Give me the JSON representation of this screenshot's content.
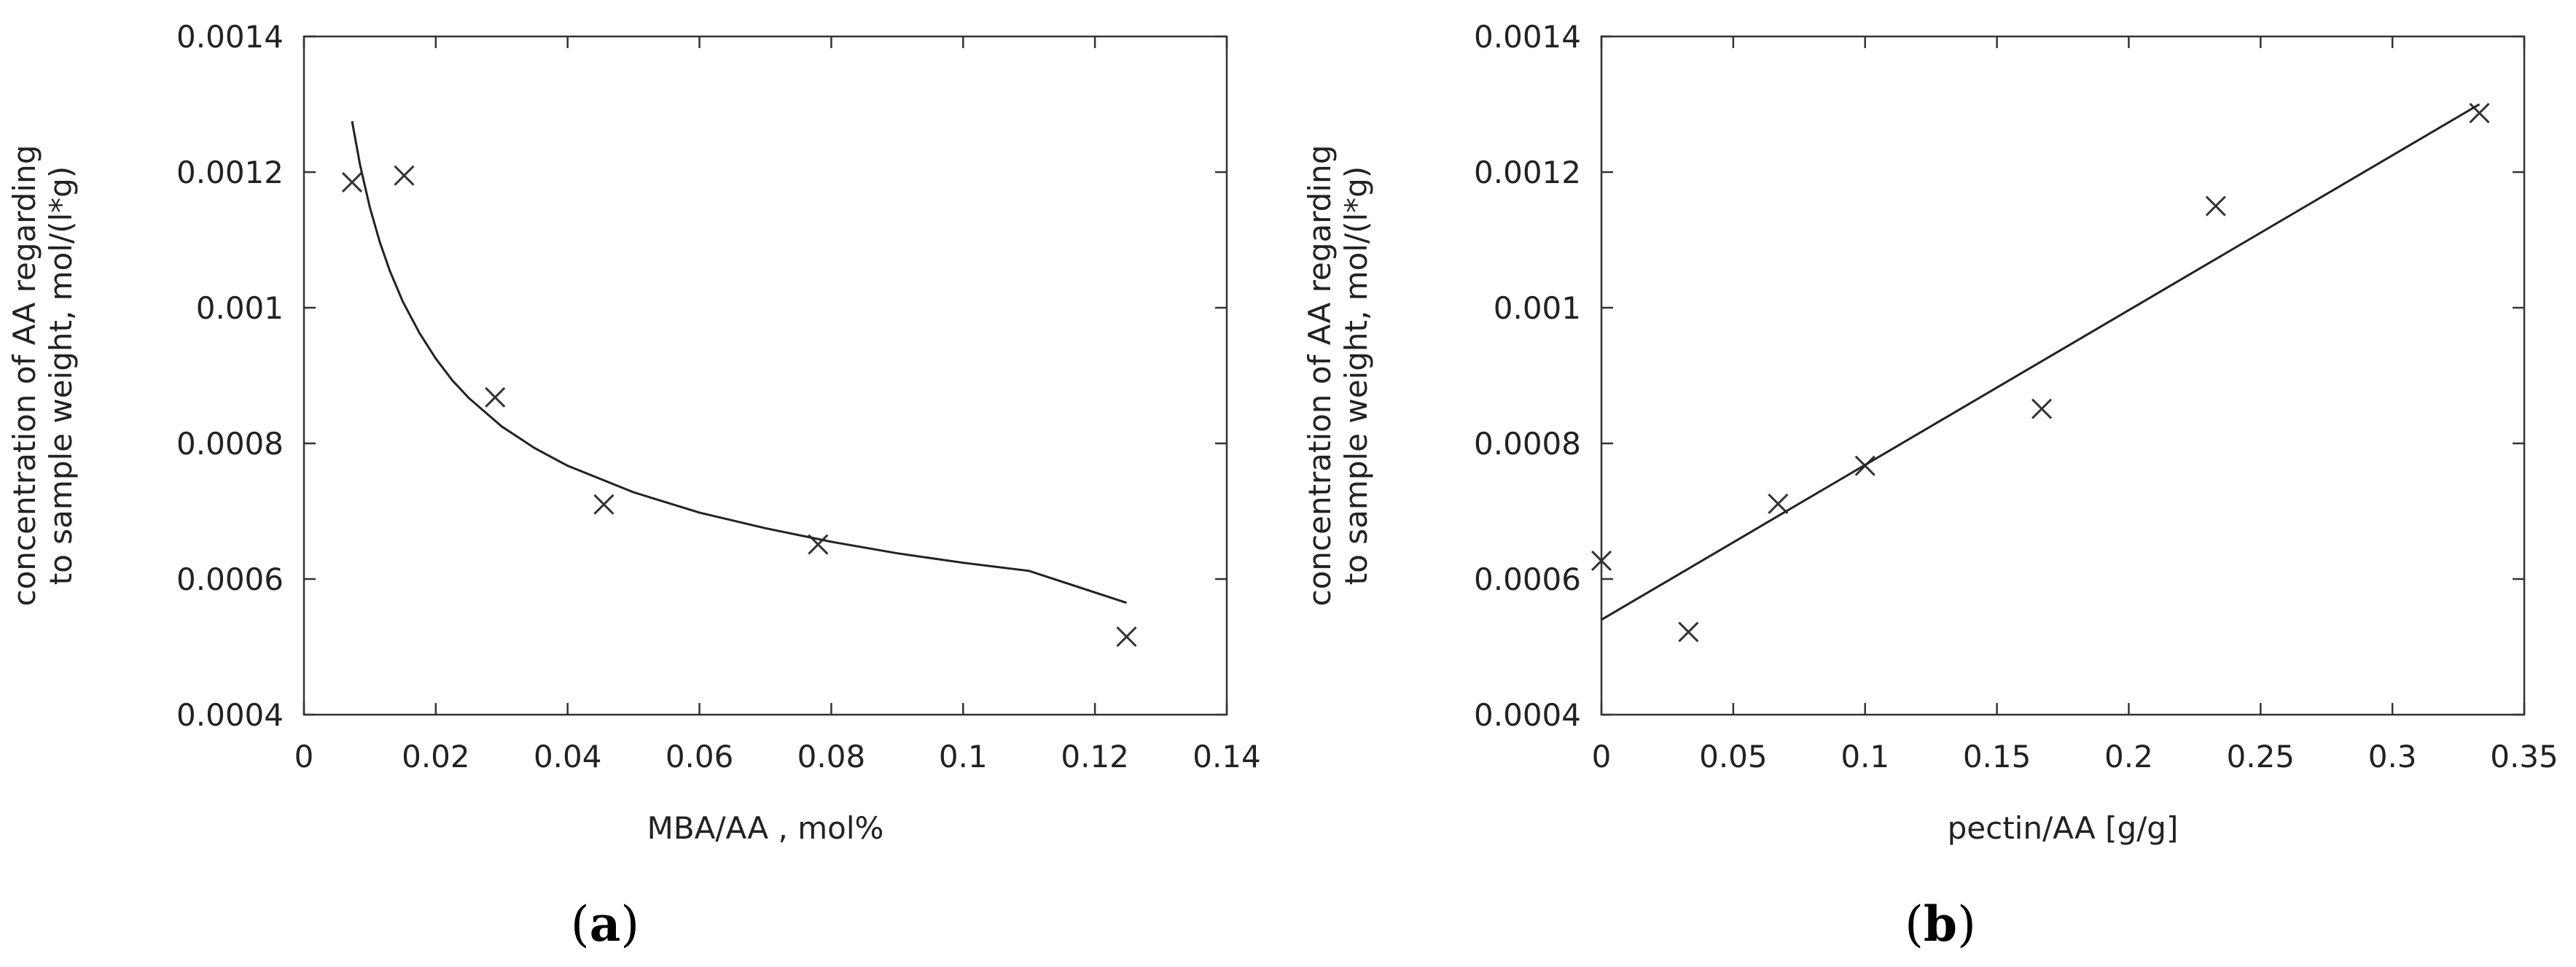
{
  "chart_data": [
    {
      "type": "scatter",
      "panel_label": "(a)",
      "panel_letter": "a",
      "title": "",
      "xlabel": "MBA/AA , mol%",
      "ylabel_lines": [
        "concentration of AA regarding",
        "to sample weight, mol/(l*g)"
      ],
      "xlim": [
        0,
        0.14
      ],
      "ylim": [
        0.0004,
        0.0014
      ],
      "xticks": [
        0,
        0.02,
        0.04,
        0.06,
        0.08,
        0.1,
        0.12,
        0.14
      ],
      "xtick_labels": [
        "0",
        "0.02",
        "0.04",
        "0.06",
        "0.08",
        "0.1",
        "0.12",
        "0.14"
      ],
      "yticks": [
        0.0004,
        0.0006,
        0.0008,
        0.001,
        0.0012,
        0.0014
      ],
      "ytick_labels": [
        "0.0004",
        "0.0006",
        "0.0008",
        "0.001",
        "0.0012",
        "0.0014"
      ],
      "grid": false,
      "series": [
        {
          "kind": "points",
          "marker": "x",
          "x": [
            0.0073,
            0.0152,
            0.029,
            0.0455,
            0.078,
            0.1248
          ],
          "y": [
            0.001185,
            0.001195,
            0.000868,
            0.00071,
            0.000651,
            0.000515
          ]
        },
        {
          "kind": "fit",
          "x": [
            0.0073,
            0.0085,
            0.01,
            0.0115,
            0.013,
            0.015,
            0.0175,
            0.02,
            0.0225,
            0.025,
            0.03,
            0.035,
            0.04,
            0.05,
            0.06,
            0.07,
            0.08,
            0.09,
            0.1,
            0.11,
            0.1248
          ],
          "y": [
            0.001275,
            0.001211,
            0.001148,
            0.001097,
            0.001055,
            0.001009,
            0.000963,
            0.000925,
            0.000893,
            0.000867,
            0.000825,
            0.000793,
            0.000767,
            0.000728,
            0.000698,
            0.000675,
            0.000655,
            0.000638,
            0.000624,
            0.000612,
            0.000565
          ]
        }
      ]
    },
    {
      "type": "scatter",
      "panel_label": "(b)",
      "panel_letter": "b",
      "title": "",
      "xlabel": "pectin/AA [g/g]",
      "ylabel_lines": [
        "concentration of AA regarding",
        "to sample weight, mol/(l*g)"
      ],
      "xlim": [
        0,
        0.35
      ],
      "ylim": [
        0.0004,
        0.0014
      ],
      "xticks": [
        0,
        0.05,
        0.1,
        0.15,
        0.2,
        0.25,
        0.3,
        0.35
      ],
      "xtick_labels": [
        "0",
        "0.05",
        "0.1",
        "0.15",
        "0.2",
        "0.25",
        "0.3",
        "0.35"
      ],
      "yticks": [
        0.0004,
        0.0006,
        0.0008,
        0.001,
        0.0012,
        0.0014
      ],
      "ytick_labels": [
        "0.0004",
        "0.0006",
        "0.0008",
        "0.001",
        "0.0012",
        "0.0014"
      ],
      "grid": false,
      "series": [
        {
          "kind": "points",
          "marker": "x",
          "x": [
            0.0,
            0.033,
            0.067,
            0.1,
            0.167,
            0.233,
            0.333
          ],
          "y": [
            0.000627,
            0.000522,
            0.000711,
            0.000767,
            0.000851,
            0.00115,
            0.001287
          ]
        },
        {
          "kind": "fit",
          "x": [
            0.0,
            0.333
          ],
          "y": [
            0.00054,
            0.0013
          ]
        }
      ]
    }
  ]
}
